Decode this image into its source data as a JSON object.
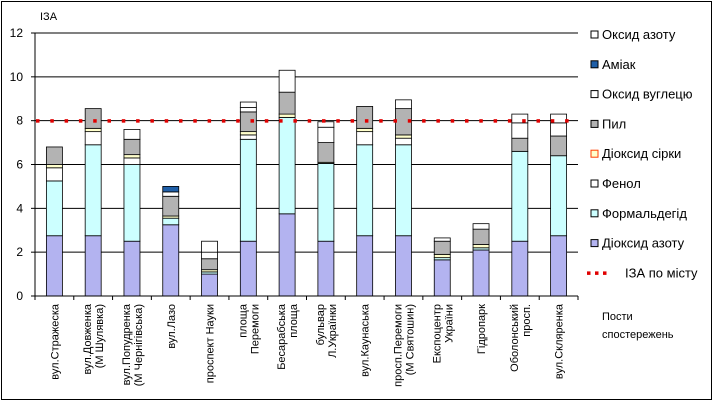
{
  "chart_data": {
    "type": "bar",
    "stacked": true,
    "ylabel": "ІЗА",
    "xlabel": "Пости спостережень",
    "xlabel_lines": [
      "Пости",
      "спостережень"
    ],
    "ylim": [
      0,
      12
    ],
    "yticks": [
      "0",
      "2",
      "4",
      "6",
      "8",
      "10",
      "12"
    ],
    "grid": "horizontal",
    "legend_position": "right",
    "categories": [
      [
        "вул.Стражеска"
      ],
      [
        "вул.Довженка",
        "(М Шулявка)"
      ],
      [
        "вул.Попудренка",
        "(М Чернігівська)"
      ],
      [
        "вул.Лазо"
      ],
      [
        "проспект Науки"
      ],
      [
        "площа",
        "Перемоги"
      ],
      [
        "Бесарабська",
        "площа"
      ],
      [
        "бульвар",
        "Л.Українки"
      ],
      [
        "вул.Каунаська"
      ],
      [
        "просп.Перемоги",
        "(М Святошин)"
      ],
      [
        "Експоцентр",
        "України"
      ],
      [
        "Гідропарк"
      ],
      [
        "Оболонський",
        "просп."
      ],
      [
        "вул.Скляренка"
      ]
    ],
    "series": [
      {
        "name": "Діоксид азоту",
        "color": "#b3b3f0",
        "values": [
          2.75,
          2.75,
          2.5,
          3.25,
          1.0,
          2.5,
          3.75,
          2.5,
          2.75,
          2.75,
          1.65,
          2.1,
          2.5,
          2.75
        ]
      },
      {
        "name": "Формальдегід",
        "color": "#ccffff",
        "values": [
          2.5,
          4.15,
          3.5,
          0.3,
          0.1,
          4.65,
          4.4,
          3.55,
          4.15,
          4.15,
          0.1,
          0.1,
          4.1,
          3.65
        ]
      },
      {
        "name": "Фенол",
        "color": "#ffffff",
        "values": [
          0.6,
          0.6,
          0.3,
          0.0,
          0.0,
          0.2,
          0.0,
          0.0,
          0.6,
          0.3,
          0.0,
          0.0,
          0.0,
          0.0
        ]
      },
      {
        "name": "Діоксид сірки",
        "color": "#ffffcc",
        "values": [
          0.15,
          0.15,
          0.15,
          0.1,
          0.1,
          0.15,
          0.15,
          0.05,
          0.15,
          0.15,
          0.15,
          0.15,
          0.0,
          0.0
        ]
      },
      {
        "name": "Пил",
        "color": "#b3b3b3",
        "values": [
          0.8,
          0.9,
          0.7,
          0.9,
          0.5,
          0.9,
          1.0,
          0.9,
          1.0,
          1.2,
          0.6,
          0.7,
          0.6,
          0.9
        ]
      },
      {
        "name": "Оксид вуглецю",
        "color": "#ffffff",
        "values": [
          0.0,
          0.0,
          0.45,
          0.2,
          0.3,
          0.2,
          0.0,
          0.7,
          0.0,
          0.0,
          0.0,
          0.0,
          0.7,
          0.6
        ]
      },
      {
        "name": "Аміак",
        "color": "#1f5fa8",
        "values": [
          0.0,
          0.0,
          0.0,
          0.25,
          0.0,
          0.0,
          0.0,
          0.0,
          0.0,
          0.0,
          0.0,
          0.0,
          0.0,
          0.0
        ]
      },
      {
        "name": "Оксид азоту",
        "color": "#ffffff",
        "values": [
          0.0,
          0.0,
          0.0,
          0.0,
          0.5,
          0.25,
          1.0,
          0.25,
          0.0,
          0.4,
          0.15,
          0.25,
          0.4,
          0.4
        ]
      }
    ],
    "reference_line": {
      "name": "ІЗА по місту",
      "value": 8.0,
      "color": "#e00000"
    },
    "legend_order": [
      "Оксид азоту",
      "Аміак",
      "Оксид вуглецю",
      "Пил",
      "Діоксид сірки",
      "Фенол",
      "Формальдегід",
      "Діоксид азоту",
      "ІЗА по місту"
    ],
    "legend_swatch_border": {
      "Діоксид сірки": "#ff4000"
    }
  }
}
